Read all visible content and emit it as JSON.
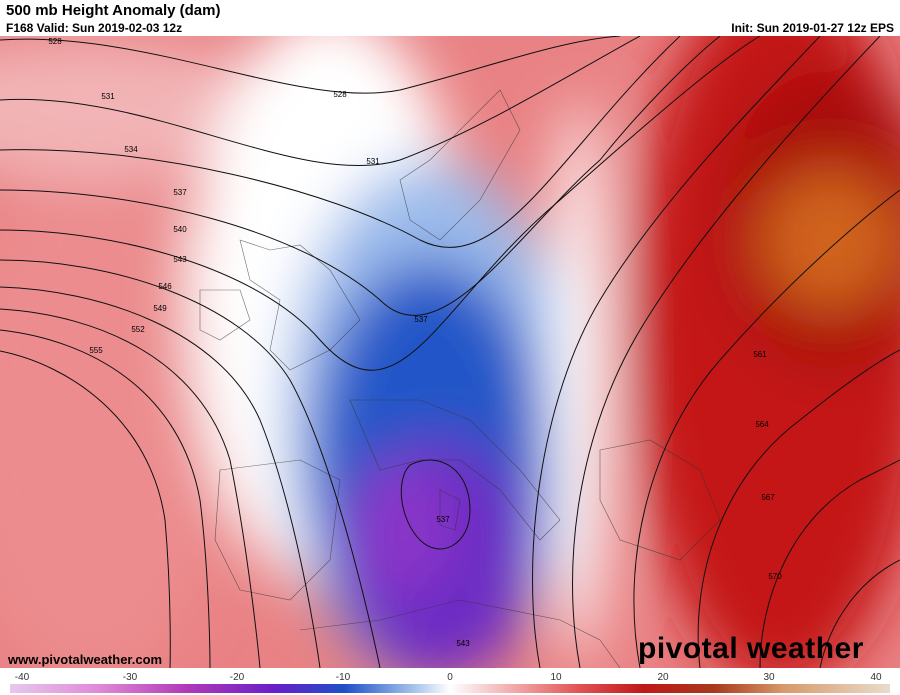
{
  "header": {
    "title": "500 mb Height Anomaly (dam)",
    "valid": "F168 Valid: Sun 2019-02-03 12z",
    "init": "Init: Sun 2019-01-27 12z EPS"
  },
  "contour_labels": [
    "528",
    "531",
    "528",
    "534",
    "531",
    "537",
    "540",
    "543",
    "546",
    "549",
    "552",
    "555",
    "537",
    "537",
    "543",
    "561",
    "564",
    "567",
    "570"
  ],
  "footer": {
    "website": "www.pivotalweather.com",
    "logo": "pivotal weather"
  },
  "colorbar": {
    "ticks": [
      -40,
      -30,
      -20,
      -10,
      0,
      10,
      20,
      30,
      40
    ]
  }
}
